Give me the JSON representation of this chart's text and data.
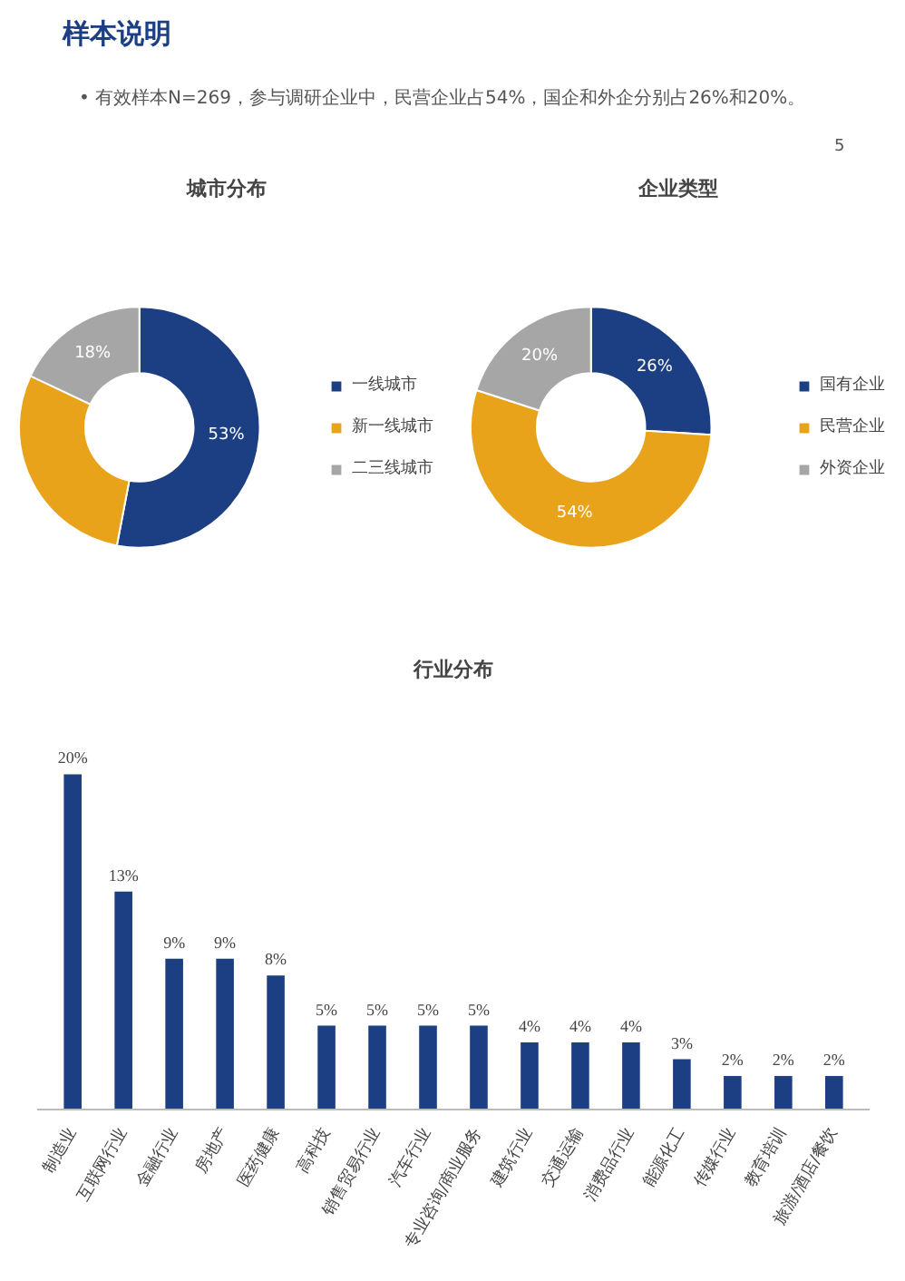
{
  "chart_data": [
    {
      "type": "other",
      "title": "样本说明",
      "annotations": [
        "• 有效样本N=269，参与调研企业中，民营企业占54%，国企和外企分别占26%和20%。",
        "5"
      ]
    },
    {
      "type": "donut",
      "title": "城市分布",
      "categories": [
        "一线城市",
        "新一线城市",
        "二三线城市"
      ],
      "values": [
        53,
        29,
        18
      ],
      "colors": [
        "#1c3f83",
        "#e8a31a",
        "#a6a6a6"
      ],
      "value_labels": [
        "53%",
        null,
        "18%"
      ],
      "legend": "right"
    },
    {
      "type": "donut",
      "title": "企业类型",
      "categories": [
        "国有企业",
        "民营企业",
        "外资企业"
      ],
      "values": [
        26,
        54,
        20
      ],
      "colors": [
        "#1c3f83",
        "#e8a31a",
        "#a6a6a6"
      ],
      "value_labels": [
        "26%",
        "54%",
        "20%"
      ],
      "legend": "right"
    },
    {
      "type": "bar",
      "title": "行业分布",
      "categories": [
        "制造业",
        "互联网行业",
        "金融行业",
        "房地产",
        "医药健康",
        "高科技",
        "销售贸易行业",
        "汽车行业",
        "专业咨询/商业服务",
        "建筑行业",
        "交通运输",
        "消费品行业",
        "能源化工",
        "传媒行业",
        "教育培训",
        "旅游/酒店/餐饮"
      ],
      "values": [
        20,
        13,
        9,
        9,
        8,
        5,
        5,
        5,
        5,
        4,
        4,
        4,
        3,
        2,
        2,
        2
      ],
      "color": "#1c3f83",
      "value_labels": [
        "20%",
        "13%",
        "9%",
        "9%",
        "8%",
        "5%",
        "5%",
        "5%",
        "5%",
        "4%",
        "4%",
        "4%",
        "3%",
        "2%",
        "2%",
        "2%"
      ],
      "grid": false,
      "tick_labels": "x"
    }
  ]
}
